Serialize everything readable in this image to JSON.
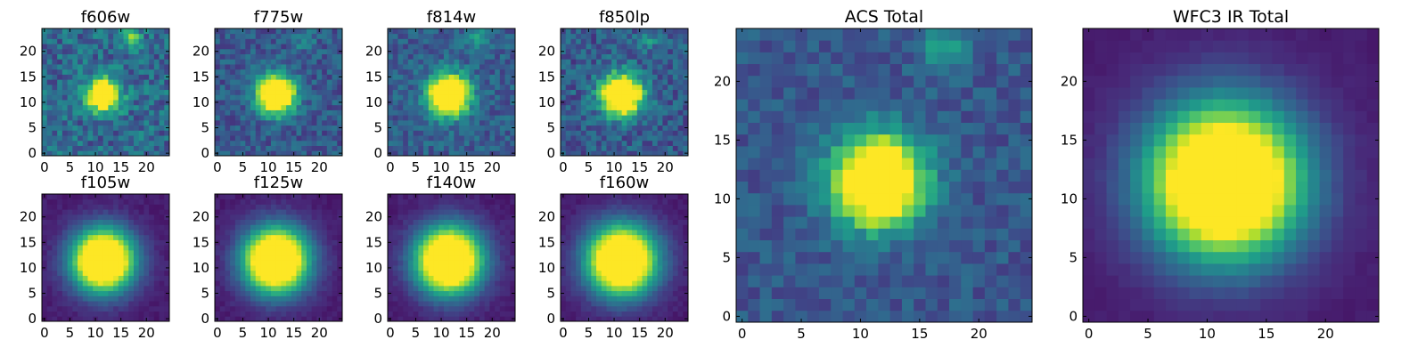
{
  "figure": {
    "colormap": "viridis",
    "colormap_stops": [
      "#440154",
      "#482878",
      "#3e4a89",
      "#31688e",
      "#26828e",
      "#1f9e89",
      "#35b779",
      "#6ece58",
      "#b5de2b",
      "#fde725"
    ]
  },
  "chart_data": [
    {
      "type": "heatmap",
      "title": "f606w",
      "size": 25,
      "xlim": [
        -0.5,
        24.5
      ],
      "ylim": [
        -0.5,
        24.5
      ],
      "x_ticks": [
        0,
        5,
        10,
        15,
        20
      ],
      "y_ticks": [
        0,
        5,
        10,
        15,
        20
      ],
      "center": [
        11.5,
        11.5
      ],
      "sigma": 2.2,
      "background": 0.28,
      "noise": 0.14,
      "features": [
        {
          "x": 17,
          "y": 22.5,
          "amp": 0.32,
          "sigma": 1.4
        }
      ]
    },
    {
      "type": "heatmap",
      "title": "f775w",
      "size": 25,
      "xlim": [
        -0.5,
        24.5
      ],
      "ylim": [
        -0.5,
        24.5
      ],
      "x_ticks": [
        0,
        5,
        10,
        15,
        20
      ],
      "y_ticks": [
        0,
        5,
        10,
        15,
        20
      ],
      "center": [
        11.5,
        11.5
      ],
      "sigma": 2.6,
      "background": 0.22,
      "noise": 0.1,
      "features": [
        {
          "x": 17,
          "y": 22.5,
          "amp": 0.18,
          "sigma": 1.5
        }
      ]
    },
    {
      "type": "heatmap",
      "title": "f814w",
      "size": 25,
      "xlim": [
        -0.5,
        24.5
      ],
      "ylim": [
        -0.5,
        24.5
      ],
      "x_ticks": [
        0,
        5,
        10,
        15,
        20
      ],
      "y_ticks": [
        0,
        5,
        10,
        15,
        20
      ],
      "center": [
        11.5,
        11.5
      ],
      "sigma": 2.7,
      "background": 0.22,
      "noise": 0.09,
      "features": [
        {
          "x": 17,
          "y": 22.5,
          "amp": 0.18,
          "sigma": 1.5
        }
      ]
    },
    {
      "type": "heatmap",
      "title": "f850lp",
      "size": 25,
      "xlim": [
        -0.5,
        24.5
      ],
      "ylim": [
        -0.5,
        24.5
      ],
      "x_ticks": [
        0,
        5,
        10,
        15,
        20
      ],
      "y_ticks": [
        0,
        5,
        10,
        15,
        20
      ],
      "center": [
        11.5,
        11.5
      ],
      "sigma": 2.8,
      "background": 0.22,
      "noise": 0.11,
      "features": [
        {
          "x": 17,
          "y": 22.5,
          "amp": 0.16,
          "sigma": 1.5
        }
      ]
    },
    {
      "type": "heatmap",
      "title": "f105w",
      "size": 25,
      "xlim": [
        -0.5,
        24.5
      ],
      "ylim": [
        -0.5,
        24.5
      ],
      "x_ticks": [
        0,
        5,
        10,
        15,
        20
      ],
      "y_ticks": [
        0,
        5,
        10,
        15,
        20
      ],
      "center": [
        11.5,
        11.5
      ],
      "sigma": 4.2,
      "background": 0.05,
      "noise": 0.02,
      "features": []
    },
    {
      "type": "heatmap",
      "title": "f125w",
      "size": 25,
      "xlim": [
        -0.5,
        24.5
      ],
      "ylim": [
        -0.5,
        24.5
      ],
      "x_ticks": [
        0,
        5,
        10,
        15,
        20
      ],
      "y_ticks": [
        0,
        5,
        10,
        15,
        20
      ],
      "center": [
        11.5,
        11.5
      ],
      "sigma": 4.4,
      "background": 0.05,
      "noise": 0.02,
      "features": []
    },
    {
      "type": "heatmap",
      "title": "f140w",
      "size": 25,
      "xlim": [
        -0.5,
        24.5
      ],
      "ylim": [
        -0.5,
        24.5
      ],
      "x_ticks": [
        0,
        5,
        10,
        15,
        20
      ],
      "y_ticks": [
        0,
        5,
        10,
        15,
        20
      ],
      "center": [
        11.5,
        11.5
      ],
      "sigma": 4.5,
      "background": 0.05,
      "noise": 0.02,
      "features": []
    },
    {
      "type": "heatmap",
      "title": "f160w",
      "size": 25,
      "xlim": [
        -0.5,
        24.5
      ],
      "ylim": [
        -0.5,
        24.5
      ],
      "x_ticks": [
        0,
        5,
        10,
        15,
        20
      ],
      "y_ticks": [
        0,
        5,
        10,
        15,
        20
      ],
      "center": [
        11.5,
        11.5
      ],
      "sigma": 4.7,
      "background": 0.05,
      "noise": 0.02,
      "features": []
    },
    {
      "type": "heatmap",
      "title": "ACS Total",
      "size": 25,
      "xlim": [
        -0.5,
        24.5
      ],
      "ylim": [
        -0.5,
        24.5
      ],
      "x_ticks": [
        0,
        5,
        10,
        15,
        20
      ],
      "y_ticks": [
        0,
        5,
        10,
        15,
        20
      ],
      "center": [
        11.5,
        11.5
      ],
      "sigma": 2.6,
      "background": 0.2,
      "noise": 0.07,
      "features": [
        {
          "x": 17,
          "y": 22.5,
          "amp": 0.22,
          "sigma": 1.4
        }
      ]
    },
    {
      "type": "heatmap",
      "title": "WFC3 IR Total",
      "size": 25,
      "xlim": [
        -0.5,
        24.5
      ],
      "ylim": [
        -0.5,
        24.5
      ],
      "x_ticks": [
        0,
        5,
        10,
        15,
        20
      ],
      "y_ticks": [
        0,
        5,
        10,
        15,
        20
      ],
      "center": [
        11.5,
        11.5
      ],
      "sigma": 4.5,
      "background": 0.05,
      "noise": 0.01,
      "features": []
    }
  ]
}
